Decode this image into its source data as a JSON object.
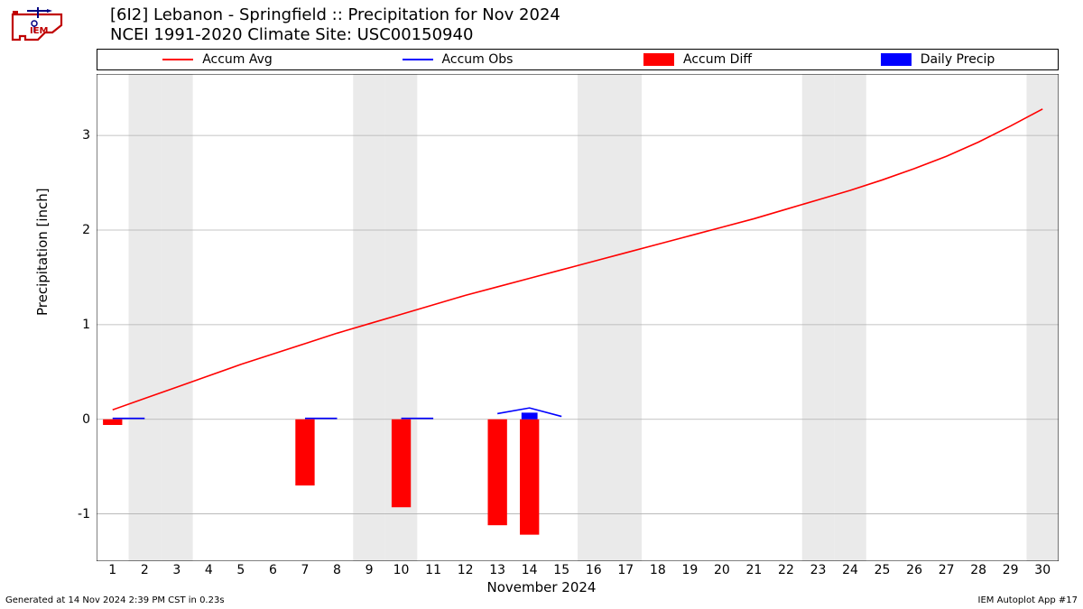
{
  "title": "[6I2] Lebanon - Springfield :: Precipitation for Nov 2024",
  "subtitle": "NCEI 1991-2020 Climate Site: USC00150940",
  "footer_left": "Generated at 14 Nov 2024 2:39 PM CST in 0.23s",
  "footer_right": "IEM Autoplot App #17",
  "ylabel": "Precipitation [inch]",
  "xlabel": "November 2024",
  "legend": [
    {
      "type": "line",
      "label": "Accum Avg",
      "color": "#ff0000"
    },
    {
      "type": "line",
      "label": "Accum Obs",
      "color": "#0000ff"
    },
    {
      "type": "rect",
      "label": "Accum Diff",
      "color": "#ff0000"
    },
    {
      "type": "rect",
      "label": "Daily Precip",
      "color": "#0000ff"
    }
  ],
  "chart": {
    "type": "mixed",
    "background_color": "#ffffff",
    "weekend_band_color": "#eaeaea",
    "grid_color": "#b0b0b0",
    "spine_color": "#000000",
    "tick_fontsize": 14,
    "label_fontsize": 15,
    "title_fontsize": 18,
    "xlim": [
      0.5,
      30.5
    ],
    "ylim": [
      -1.5,
      3.65
    ],
    "xticks": [
      1,
      2,
      3,
      4,
      5,
      6,
      7,
      8,
      9,
      10,
      11,
      12,
      13,
      14,
      15,
      16,
      17,
      18,
      19,
      20,
      21,
      22,
      23,
      24,
      25,
      26,
      27,
      28,
      29,
      30
    ],
    "yticks": [
      -1,
      0,
      1,
      2,
      3
    ],
    "weekend_days": [
      2,
      3,
      9,
      10,
      16,
      17,
      23,
      24,
      30
    ],
    "accum_avg": {
      "color": "#ff0000",
      "line_width": 1.6,
      "x": [
        1,
        2,
        3,
        4,
        5,
        6,
        7,
        8,
        9,
        10,
        11,
        12,
        13,
        14,
        15,
        16,
        17,
        18,
        19,
        20,
        21,
        22,
        23,
        24,
        25,
        26,
        27,
        28,
        29,
        30
      ],
      "y": [
        0.1,
        0.22,
        0.34,
        0.46,
        0.58,
        0.69,
        0.8,
        0.91,
        1.01,
        1.11,
        1.21,
        1.31,
        1.4,
        1.49,
        1.58,
        1.67,
        1.76,
        1.85,
        1.94,
        2.03,
        2.12,
        2.22,
        2.32,
        2.42,
        2.53,
        2.65,
        2.78,
        2.93,
        3.1,
        3.28
      ]
    },
    "accum_obs": {
      "color": "#0000ff",
      "line_width": 1.6,
      "segments": [
        {
          "x": [
            1,
            2
          ],
          "y": [
            0.01,
            0.01
          ]
        },
        {
          "x": [
            7,
            8
          ],
          "y": [
            0.01,
            0.01
          ]
        },
        {
          "x": [
            10,
            11
          ],
          "y": [
            0.01,
            0.01
          ]
        },
        {
          "x": [
            13,
            14,
            15
          ],
          "y": [
            0.06,
            0.12,
            0.03
          ]
        }
      ]
    },
    "accum_diff_bars": {
      "color": "#ff0000",
      "bar_width": 0.6,
      "data": [
        {
          "x": 1,
          "y": -0.06
        },
        {
          "x": 7,
          "y": -0.7
        },
        {
          "x": 10,
          "y": -0.93
        },
        {
          "x": 13,
          "y": -1.12
        },
        {
          "x": 14,
          "y": -1.22
        }
      ]
    },
    "daily_precip_bars": {
      "color": "#0000ff",
      "bar_width": 0.5,
      "data": [
        {
          "x": 14,
          "y": 0.07
        }
      ]
    }
  }
}
